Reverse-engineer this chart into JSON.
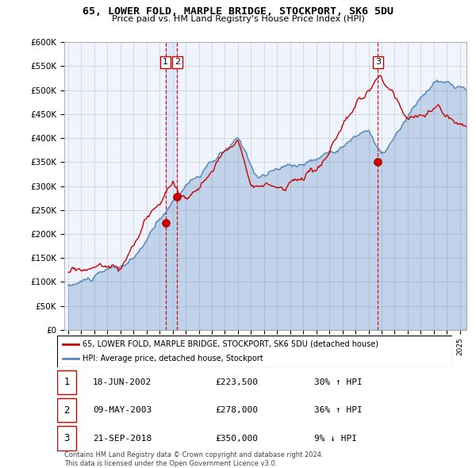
{
  "title": "65, LOWER FOLD, MARPLE BRIDGE, STOCKPORT, SK6 5DU",
  "subtitle": "Price paid vs. HM Land Registry's House Price Index (HPI)",
  "ylabel_ticks": [
    "£0",
    "£50K",
    "£100K",
    "£150K",
    "£200K",
    "£250K",
    "£300K",
    "£350K",
    "£400K",
    "£450K",
    "£500K",
    "£550K",
    "£600K"
  ],
  "ylim": [
    0,
    600000
  ],
  "xlim_start": 1994.7,
  "xlim_end": 2025.5,
  "legend_line1": "65, LOWER FOLD, MARPLE BRIDGE, STOCKPORT, SK6 5DU (detached house)",
  "legend_line2": "HPI: Average price, detached house, Stockport",
  "sale_color": "#cc0000",
  "hpi_color": "#5588bb",
  "hpi_fill_color": "#ddeeff",
  "vline_color": "#cc0000",
  "transactions": [
    {
      "label": "1",
      "date_num": 2002.46,
      "price": 223500
    },
    {
      "label": "2",
      "date_num": 2003.35,
      "price": 278000
    },
    {
      "label": "3",
      "date_num": 2018.72,
      "price": 350000
    }
  ],
  "table_rows": [
    {
      "num": "1",
      "date": "18-JUN-2002",
      "price": "£223,500",
      "pct": "30% ↑ HPI"
    },
    {
      "num": "2",
      "date": "09-MAY-2003",
      "price": "£278,000",
      "pct": "36% ↑ HPI"
    },
    {
      "num": "3",
      "date": "21-SEP-2018",
      "price": "£350,000",
      "pct": "9% ↓ HPI"
    }
  ],
  "footer": "Contains HM Land Registry data © Crown copyright and database right 2024.\nThis data is licensed under the Open Government Licence v3.0.",
  "background_color": "#ffffff",
  "chart_bg_color": "#f0f4ff",
  "grid_color": "#cccccc"
}
